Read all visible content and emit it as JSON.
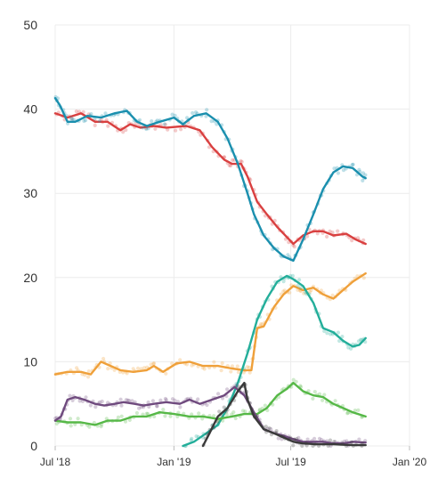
{
  "chart_data": {
    "type": "line",
    "title": "",
    "xlabel": "",
    "ylabel": "",
    "ylim": [
      0,
      50
    ],
    "yticks": [
      "0",
      "10",
      "20",
      "30",
      "40",
      "50"
    ],
    "xticks": [
      {
        "label": "Jul '18",
        "date": "2018-07-01"
      },
      {
        "label": "Jan '19",
        "date": "2019-01-01"
      },
      {
        "label": "Jul '19",
        "date": "2019-07-01"
      },
      {
        "label": "Jan '20",
        "date": "2020-01-01"
      }
    ],
    "xlim": [
      "2018-07-01",
      "2020-01-01"
    ],
    "grid": true,
    "legend": "none",
    "series": [
      {
        "color": "#d94040",
        "points": [
          [
            "2018-07-01",
            39.5
          ],
          [
            "2018-07-20",
            39.0
          ],
          [
            "2018-08-10",
            39.5
          ],
          [
            "2018-09-01",
            38.5
          ],
          [
            "2018-09-20",
            38.5
          ],
          [
            "2018-10-10",
            37.5
          ],
          [
            "2018-10-25",
            38.2
          ],
          [
            "2018-11-10",
            37.8
          ],
          [
            "2018-12-01",
            38.0
          ],
          [
            "2018-12-20",
            37.8
          ],
          [
            "2019-01-20",
            38.0
          ],
          [
            "2019-02-10",
            37.5
          ],
          [
            "2019-03-01",
            35.5
          ],
          [
            "2019-03-20",
            34.0
          ],
          [
            "2019-04-01",
            33.5
          ],
          [
            "2019-04-15",
            33.5
          ],
          [
            "2019-04-25",
            32.0
          ],
          [
            "2019-05-10",
            29.0
          ],
          [
            "2019-05-25",
            27.5
          ],
          [
            "2019-06-10",
            26.0
          ],
          [
            "2019-06-25",
            24.8
          ],
          [
            "2019-07-05",
            24.0
          ],
          [
            "2019-07-20",
            25.0
          ],
          [
            "2019-08-05",
            25.5
          ],
          [
            "2019-08-20",
            25.5
          ],
          [
            "2019-09-05",
            25.0
          ],
          [
            "2019-09-25",
            25.2
          ],
          [
            "2019-10-10",
            24.5
          ],
          [
            "2019-10-25",
            24.0
          ]
        ]
      },
      {
        "color": "#1a8fae",
        "points": [
          [
            "2018-07-01",
            41.3
          ],
          [
            "2018-07-08",
            40.5
          ],
          [
            "2018-07-20",
            38.5
          ],
          [
            "2018-08-01",
            38.5
          ],
          [
            "2018-08-20",
            39.2
          ],
          [
            "2018-09-10",
            39.0
          ],
          [
            "2018-10-01",
            39.5
          ],
          [
            "2018-10-20",
            39.8
          ],
          [
            "2018-11-05",
            38.5
          ],
          [
            "2018-11-20",
            38.0
          ],
          [
            "2018-12-10",
            38.5
          ],
          [
            "2019-01-01",
            39.0
          ],
          [
            "2019-01-15",
            38.2
          ],
          [
            "2019-02-01",
            39.2
          ],
          [
            "2019-02-20",
            39.5
          ],
          [
            "2019-03-10",
            38.5
          ],
          [
            "2019-03-25",
            36.5
          ],
          [
            "2019-04-10",
            33.5
          ],
          [
            "2019-04-25",
            30.0
          ],
          [
            "2019-05-05",
            27.5
          ],
          [
            "2019-05-20",
            25.0
          ],
          [
            "2019-06-05",
            23.5
          ],
          [
            "2019-06-20",
            22.5
          ],
          [
            "2019-07-05",
            22.0
          ],
          [
            "2019-07-20",
            24.5
          ],
          [
            "2019-08-05",
            27.5
          ],
          [
            "2019-08-20",
            30.5
          ],
          [
            "2019-09-05",
            32.5
          ],
          [
            "2019-09-20",
            33.2
          ],
          [
            "2019-10-05",
            33.0
          ],
          [
            "2019-10-20",
            32.0
          ],
          [
            "2019-10-25",
            31.8
          ]
        ]
      },
      {
        "color": "#efa03a",
        "points": [
          [
            "2018-07-01",
            8.5
          ],
          [
            "2018-07-20",
            8.8
          ],
          [
            "2018-08-10",
            8.8
          ],
          [
            "2018-08-25",
            8.5
          ],
          [
            "2018-09-10",
            10.0
          ],
          [
            "2018-09-25",
            9.5
          ],
          [
            "2018-10-10",
            9.0
          ],
          [
            "2018-10-30",
            8.8
          ],
          [
            "2018-11-20",
            9.0
          ],
          [
            "2018-12-01",
            9.5
          ],
          [
            "2018-12-15",
            8.8
          ],
          [
            "2019-01-05",
            9.8
          ],
          [
            "2019-01-25",
            10.0
          ],
          [
            "2019-02-15",
            9.5
          ],
          [
            "2019-03-10",
            9.5
          ],
          [
            "2019-04-01",
            9.2
          ],
          [
            "2019-04-20",
            9.0
          ],
          [
            "2019-05-01",
            9.0
          ],
          [
            "2019-05-10",
            14.0
          ],
          [
            "2019-05-20",
            14.2
          ],
          [
            "2019-06-05",
            16.5
          ],
          [
            "2019-06-20",
            18.0
          ],
          [
            "2019-07-05",
            19.0
          ],
          [
            "2019-07-20",
            18.5
          ],
          [
            "2019-08-05",
            18.8
          ],
          [
            "2019-08-20",
            18.0
          ],
          [
            "2019-09-05",
            17.5
          ],
          [
            "2019-09-20",
            18.5
          ],
          [
            "2019-10-05",
            19.5
          ],
          [
            "2019-10-25",
            20.5
          ]
        ]
      },
      {
        "color": "#23ae9a",
        "points": [
          [
            "2019-01-15",
            0.0
          ],
          [
            "2019-02-01",
            0.5
          ],
          [
            "2019-02-20",
            1.5
          ],
          [
            "2019-03-10",
            2.5
          ],
          [
            "2019-03-25",
            4.5
          ],
          [
            "2019-04-10",
            7.5
          ],
          [
            "2019-04-25",
            11.0
          ],
          [
            "2019-05-10",
            15.0
          ],
          [
            "2019-05-25",
            17.5
          ],
          [
            "2019-06-10",
            19.5
          ],
          [
            "2019-06-25",
            20.2
          ],
          [
            "2019-07-05",
            19.8
          ],
          [
            "2019-07-20",
            19.0
          ],
          [
            "2019-08-05",
            17.0
          ],
          [
            "2019-08-20",
            14.0
          ],
          [
            "2019-09-05",
            13.5
          ],
          [
            "2019-09-20",
            12.5
          ],
          [
            "2019-10-05",
            11.8
          ],
          [
            "2019-10-15",
            12.0
          ],
          [
            "2019-10-25",
            12.8
          ]
        ]
      },
      {
        "color": "#56b847",
        "points": [
          [
            "2018-07-01",
            3.0
          ],
          [
            "2018-07-20",
            2.8
          ],
          [
            "2018-08-10",
            2.8
          ],
          [
            "2018-09-01",
            2.5
          ],
          [
            "2018-09-20",
            3.0
          ],
          [
            "2018-10-10",
            3.0
          ],
          [
            "2018-10-30",
            3.5
          ],
          [
            "2018-11-20",
            3.5
          ],
          [
            "2018-12-10",
            4.0
          ],
          [
            "2019-01-01",
            3.8
          ],
          [
            "2019-01-25",
            3.5
          ],
          [
            "2019-02-15",
            3.5
          ],
          [
            "2019-03-10",
            3.2
          ],
          [
            "2019-04-01",
            3.5
          ],
          [
            "2019-04-20",
            3.8
          ],
          [
            "2019-05-10",
            3.8
          ],
          [
            "2019-05-25",
            4.5
          ],
          [
            "2019-06-10",
            6.0
          ],
          [
            "2019-06-25",
            6.8
          ],
          [
            "2019-07-05",
            7.5
          ],
          [
            "2019-07-20",
            6.5
          ],
          [
            "2019-08-05",
            6.0
          ],
          [
            "2019-08-20",
            5.8
          ],
          [
            "2019-09-05",
            5.0
          ],
          [
            "2019-09-20",
            4.5
          ],
          [
            "2019-10-05",
            4.0
          ],
          [
            "2019-10-25",
            3.5
          ]
        ]
      },
      {
        "color": "#6f4a7e",
        "points": [
          [
            "2018-07-01",
            3.0
          ],
          [
            "2018-07-10",
            3.5
          ],
          [
            "2018-07-20",
            5.5
          ],
          [
            "2018-08-01",
            5.8
          ],
          [
            "2018-08-15",
            5.5
          ],
          [
            "2018-09-01",
            5.0
          ],
          [
            "2018-09-15",
            4.8
          ],
          [
            "2018-10-01",
            5.0
          ],
          [
            "2018-10-15",
            5.2
          ],
          [
            "2018-11-01",
            5.0
          ],
          [
            "2018-11-15",
            4.8
          ],
          [
            "2018-12-01",
            5.0
          ],
          [
            "2018-12-20",
            5.2
          ],
          [
            "2019-01-10",
            5.0
          ],
          [
            "2019-01-25",
            5.5
          ],
          [
            "2019-02-10",
            5.0
          ],
          [
            "2019-03-01",
            5.5
          ],
          [
            "2019-03-20",
            6.0
          ],
          [
            "2019-04-05",
            7.0
          ],
          [
            "2019-04-20",
            6.0
          ],
          [
            "2019-05-05",
            4.0
          ],
          [
            "2019-05-20",
            2.0
          ],
          [
            "2019-06-05",
            1.5
          ],
          [
            "2019-06-20",
            1.2
          ],
          [
            "2019-07-05",
            0.8
          ],
          [
            "2019-07-20",
            0.5
          ],
          [
            "2019-08-05",
            0.5
          ],
          [
            "2019-08-20",
            0.5
          ],
          [
            "2019-09-05",
            0.3
          ],
          [
            "2019-09-20",
            0.3
          ],
          [
            "2019-10-05",
            0.5
          ],
          [
            "2019-10-25",
            0.4
          ]
        ]
      },
      {
        "color": "#3a3a3a",
        "points": [
          [
            "2019-02-15",
            0.0
          ],
          [
            "2019-02-25",
            1.5
          ],
          [
            "2019-03-10",
            3.5
          ],
          [
            "2019-03-25",
            4.5
          ],
          [
            "2019-04-10",
            6.5
          ],
          [
            "2019-04-20",
            7.5
          ],
          [
            "2019-04-25",
            5.5
          ],
          [
            "2019-05-05",
            3.5
          ],
          [
            "2019-05-20",
            2.0
          ],
          [
            "2019-06-05",
            1.5
          ],
          [
            "2019-06-20",
            1.0
          ],
          [
            "2019-07-05",
            0.5
          ],
          [
            "2019-07-20",
            0.3
          ],
          [
            "2019-08-10",
            0.2
          ],
          [
            "2019-09-05",
            0.2
          ],
          [
            "2019-10-05",
            0.1
          ],
          [
            "2019-10-25",
            0.1
          ]
        ]
      }
    ]
  }
}
